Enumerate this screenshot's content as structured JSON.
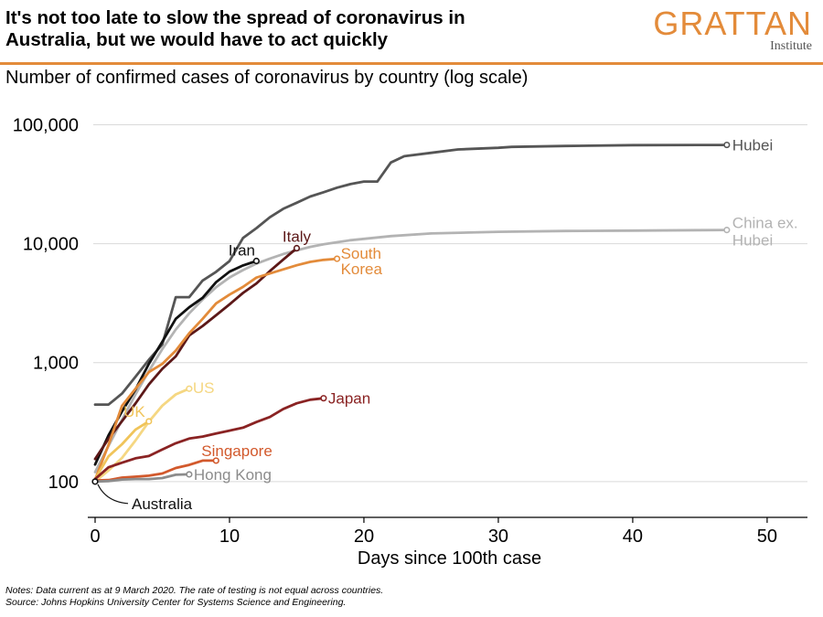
{
  "header": {
    "title_line1": "It's not too late to slow the spread of coronavirus in",
    "title_line2": "Australia, but we would have to act quickly",
    "logo_name": "GRATTAN",
    "logo_sub": "Institute",
    "subtitle": "Number of confirmed cases of coronavirus by country (log scale)"
  },
  "colors": {
    "accent": "#e38b3a",
    "grid": "#d9d9d9",
    "axis": "#000000"
  },
  "footer": {
    "notes": "Notes: Data current as at 9 March 2020. The rate of testing is not equal across countries.",
    "source": "Source: Johns Hopkins University Center for Systems Science and Engineering."
  },
  "chart_data": {
    "type": "line",
    "title": "Number of confirmed cases of coronavirus by country (log scale)",
    "xlabel": "Days since 100th case",
    "ylabel": "",
    "yscale": "log",
    "xlim": [
      0,
      53
    ],
    "ylim": [
      50,
      160000
    ],
    "xticks": [
      0,
      10,
      20,
      30,
      40,
      50
    ],
    "yticks": [
      100,
      1000,
      10000,
      100000
    ],
    "ytick_labels": [
      "100",
      "1,000",
      "10,000",
      "100,000"
    ],
    "grid": true,
    "series": [
      {
        "name": "Hubei",
        "label_lines": [
          "Hubei"
        ],
        "color": "#555555",
        "x": [
          0,
          1,
          2,
          3,
          4,
          5,
          6,
          7,
          8,
          9,
          10,
          11,
          12,
          13,
          14,
          15,
          16,
          17,
          18,
          19,
          20,
          21,
          22,
          23,
          25,
          27,
          30,
          31,
          35,
          40,
          45,
          47
        ],
        "y": [
          444,
          444,
          549,
          761,
          1058,
          1423,
          3554,
          3554,
          4903,
          5806,
          7153,
          11177,
          13522,
          16678,
          19665,
          22112,
          24953,
          27100,
          29631,
          31728,
          33366,
          33366,
          48206,
          54406,
          58182,
          62031,
          64084,
          65187,
          66337,
          67466,
          67700,
          67743
        ]
      },
      {
        "name": "China ex. Hubei",
        "label_lines": [
          "China ex.",
          "Hubei"
        ],
        "color": "#b3b3b3",
        "x": [
          0,
          1,
          2,
          3,
          4,
          5,
          6,
          7,
          8,
          9,
          10,
          11,
          12,
          13,
          14,
          15,
          16,
          17,
          18,
          19,
          20,
          22,
          25,
          30,
          35,
          40,
          45,
          47
        ],
        "y": [
          120,
          200,
          330,
          540,
          850,
          1300,
          1900,
          2600,
          3400,
          4300,
          5200,
          6000,
          6800,
          7500,
          8200,
          8800,
          9400,
          9900,
          10300,
          10700,
          11000,
          11600,
          12200,
          12600,
          12800,
          12900,
          13000,
          13050
        ]
      },
      {
        "name": "Iran",
        "label_lines": [
          "Iran"
        ],
        "color": "#111111",
        "x": [
          0,
          1,
          2,
          3,
          4,
          5,
          6,
          7,
          8,
          9,
          10,
          11,
          12
        ],
        "y": [
          139,
          245,
          388,
          593,
          978,
          1501,
          2336,
          2922,
          3513,
          4747,
          5823,
          6566,
          7161
        ]
      },
      {
        "name": "Italy",
        "label_lines": [
          "Italy"
        ],
        "color": "#5c1818",
        "x": [
          0,
          1,
          2,
          3,
          4,
          5,
          6,
          7,
          8,
          9,
          10,
          11,
          12,
          13,
          14,
          15
        ],
        "y": [
          155,
          229,
          322,
          453,
          655,
          888,
          1128,
          1694,
          2036,
          2502,
          3089,
          3858,
          4636,
          5883,
          7375,
          9172
        ]
      },
      {
        "name": "South Korea",
        "label_lines": [
          "South",
          "Korea"
        ],
        "color": "#e38b3a",
        "x": [
          0,
          1,
          2,
          3,
          4,
          5,
          6,
          7,
          8,
          9,
          10,
          11,
          12,
          13,
          14,
          15,
          16,
          17,
          18
        ],
        "y": [
          104,
          204,
          433,
          602,
          833,
          977,
          1261,
          1766,
          2337,
          3150,
          3736,
          4335,
          5186,
          5621,
          6088,
          6593,
          7041,
          7314,
          7478
        ]
      },
      {
        "name": "US",
        "label_lines": [
          "US"
        ],
        "color": "#f5d782",
        "x": [
          0,
          1,
          2,
          3,
          4,
          5,
          6,
          7
        ],
        "y": [
          100,
          124,
          158,
          221,
          319,
          435,
          541,
          604
        ]
      },
      {
        "name": "UK",
        "label_lines": [
          "UK"
        ],
        "color": "#f0c45a",
        "x": [
          0,
          1,
          2,
          3,
          4
        ],
        "y": [
          105,
          163,
          206,
          273,
          321
        ]
      },
      {
        "name": "Japan",
        "label_lines": [
          "Japan"
        ],
        "color": "#8a2323",
        "x": [
          0,
          1,
          2,
          3,
          4,
          5,
          6,
          7,
          8,
          9,
          10,
          11,
          12,
          13,
          14,
          15,
          16,
          17
        ],
        "y": [
          105,
          132,
          144,
          157,
          164,
          186,
          210,
          230,
          239,
          254,
          268,
          284,
          317,
          349,
          408,
          455,
          488,
          502
        ]
      },
      {
        "name": "Singapore",
        "label_lines": [
          "Singapore"
        ],
        "color": "#d2592c",
        "x": [
          0,
          1,
          2,
          3,
          4,
          5,
          6,
          7,
          8,
          9
        ],
        "y": [
          102,
          103,
          108,
          110,
          112,
          117,
          130,
          138,
          150,
          150
        ]
      },
      {
        "name": "Hong Kong",
        "label_lines": [
          "Hong Kong"
        ],
        "color": "#8c8c8c",
        "x": [
          0,
          1,
          2,
          3,
          4,
          5,
          6,
          7
        ],
        "y": [
          100,
          101,
          104,
          105,
          105,
          107,
          114,
          115
        ]
      },
      {
        "name": "Australia",
        "label_lines": [
          "Australia"
        ],
        "color": "#111111",
        "x": [
          0
        ],
        "y": [
          100
        ]
      }
    ]
  }
}
